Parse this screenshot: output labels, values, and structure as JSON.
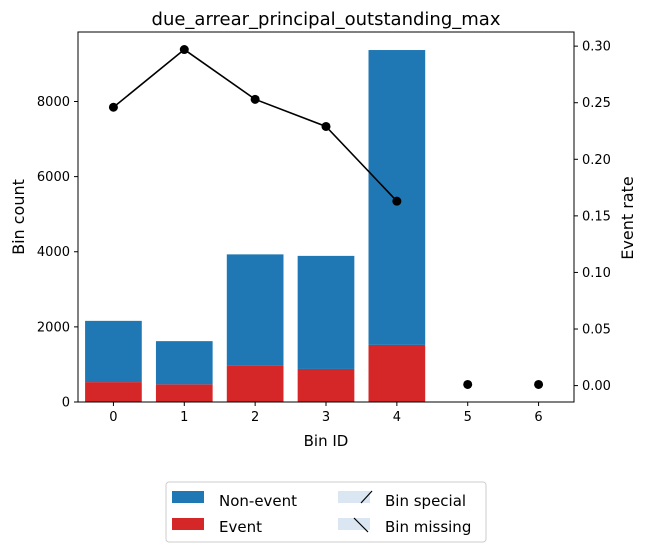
{
  "chart_data": {
    "type": "bar",
    "title": "due_arrear_principal_outstanding_max",
    "xlabel": "Bin ID",
    "ylabel": "Bin count",
    "y2label": "Event rate",
    "categories": [
      "0",
      "1",
      "2",
      "3",
      "4",
      "5",
      "6"
    ],
    "ylim": [
      0,
      9850
    ],
    "y2lim": [
      -0.0145,
      0.3125
    ],
    "yticks": [
      0,
      2000,
      4000,
      6000,
      8000
    ],
    "y2ticks": [
      "0.00",
      "0.05",
      "0.10",
      "0.15",
      "0.20",
      "0.25",
      "0.30"
    ],
    "series": [
      {
        "name": "Event",
        "values": [
          530,
          470,
          980,
          880,
          1520,
          0,
          0
        ],
        "color": "#d62728"
      },
      {
        "name": "Non-event",
        "values": [
          1630,
          1150,
          2950,
          3010,
          7850,
          0,
          0
        ],
        "color": "#1f77b4"
      }
    ],
    "event_rate": [
      0.246,
      0.297,
      0.253,
      0.229,
      0.163,
      0.001,
      0.001
    ],
    "event_rate_line_points": 5,
    "legend": {
      "position": "bottom",
      "items": [
        {
          "label": "Non-event",
          "swatch": "#1f77b4"
        },
        {
          "label": "Event",
          "swatch": "#d62728"
        },
        {
          "label": "Bin special",
          "swatch": "#dae6f1"
        },
        {
          "label": "Bin missing",
          "swatch": "#dae6f1"
        }
      ]
    },
    "grid": false
  }
}
